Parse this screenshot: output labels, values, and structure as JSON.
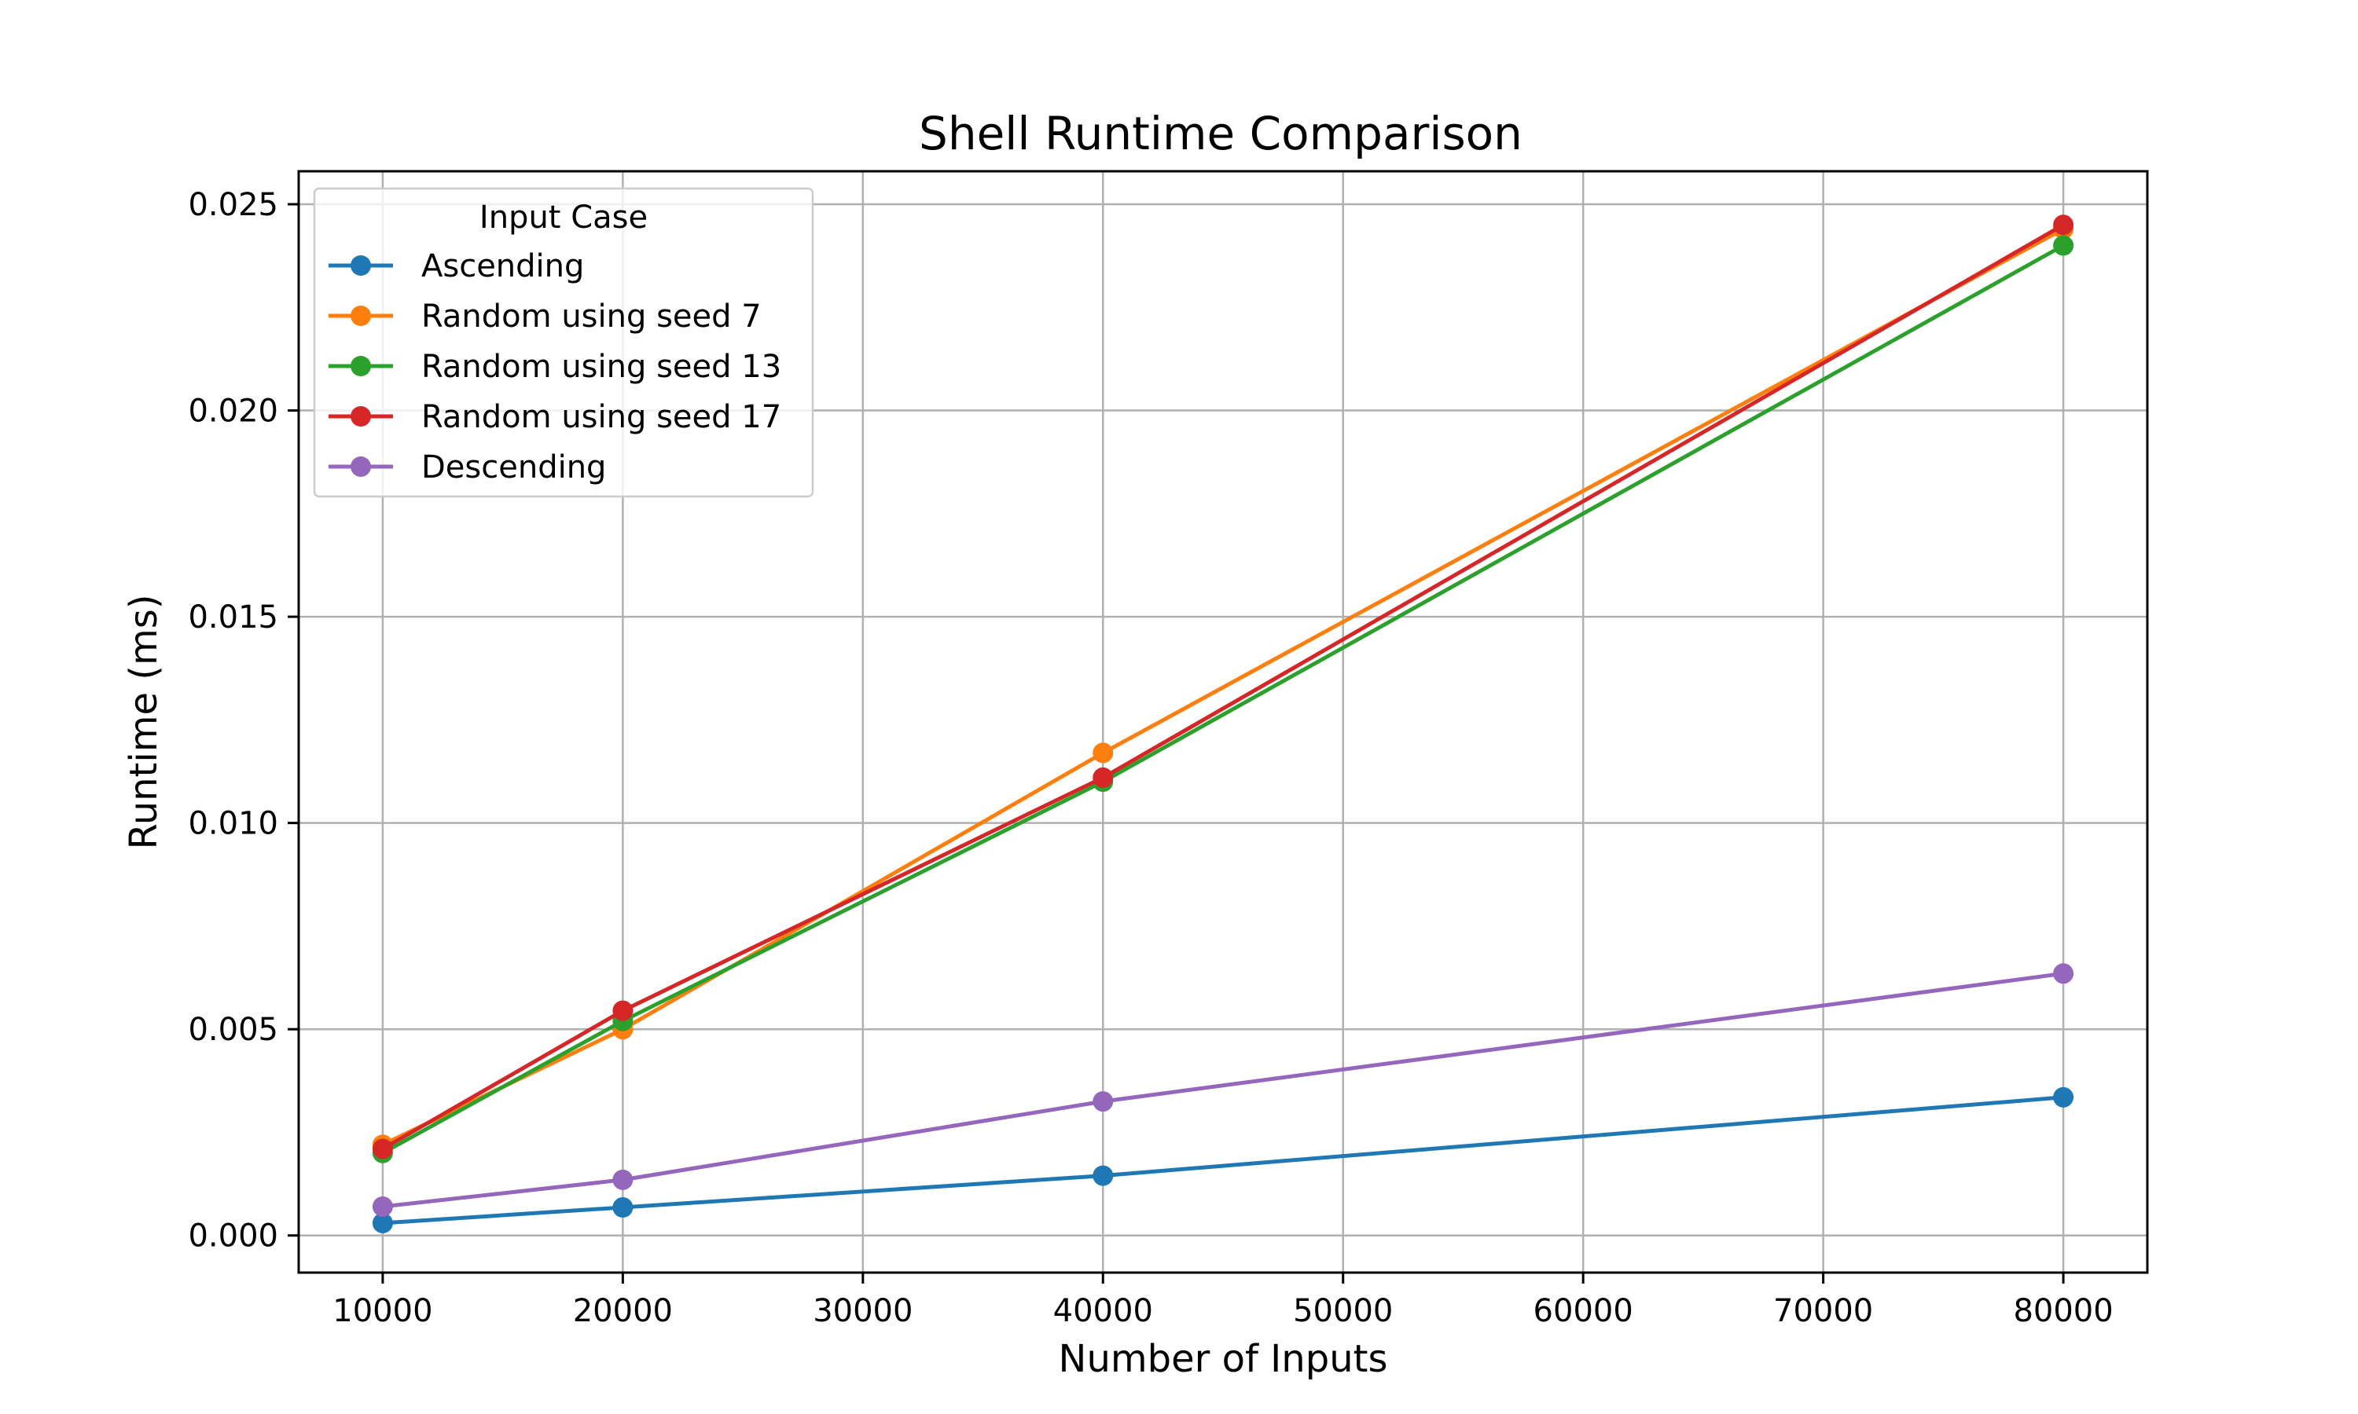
{
  "chart_data": {
    "type": "line",
    "title": "Shell Runtime Comparison",
    "xlabel": "Number of Inputs",
    "ylabel": "Runtime (ms)",
    "x": [
      10000,
      20000,
      40000,
      80000
    ],
    "xlim": [
      6500,
      83500
    ],
    "ylim": [
      -0.0009,
      0.0258
    ],
    "x_ticks": [
      10000,
      20000,
      30000,
      40000,
      50000,
      60000,
      70000,
      80000
    ],
    "x_tick_labels": [
      "10000",
      "20000",
      "30000",
      "40000",
      "50000",
      "60000",
      "70000",
      "80000"
    ],
    "y_ticks": [
      0.0,
      0.005,
      0.01,
      0.015,
      0.02,
      0.025
    ],
    "y_tick_labels": [
      "0.000",
      "0.005",
      "0.010",
      "0.015",
      "0.020",
      "0.025"
    ],
    "grid": true,
    "legend": {
      "title": "Input Case",
      "position": "top-left"
    },
    "series": [
      {
        "name": "Ascending",
        "color": "#1f77b4",
        "values": [
          0.0003,
          0.00068,
          0.00145,
          0.00335
        ]
      },
      {
        "name": "Random using seed 7",
        "color": "#ff7f0e",
        "values": [
          0.0022,
          0.005,
          0.0117,
          0.0244
        ]
      },
      {
        "name": "Random using seed 13",
        "color": "#2ca02c",
        "values": [
          0.002,
          0.0052,
          0.011,
          0.024
        ]
      },
      {
        "name": "Random using seed 17",
        "color": "#d62728",
        "values": [
          0.0021,
          0.00545,
          0.0111,
          0.0245
        ]
      },
      {
        "name": "Descending",
        "color": "#9467bd",
        "values": [
          0.0007,
          0.00135,
          0.00325,
          0.00635
        ]
      }
    ]
  }
}
